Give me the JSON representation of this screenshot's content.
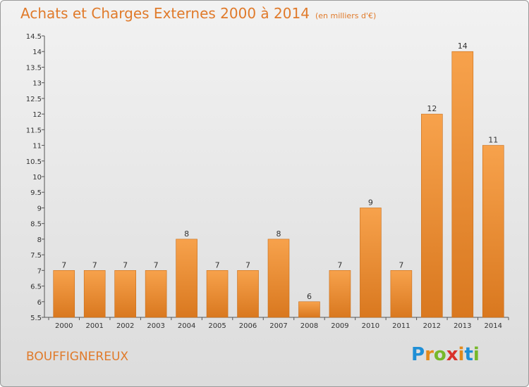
{
  "header": {
    "title": "Achats et Charges Externes 2000 à 2014",
    "unit": "(en milliers d'€)"
  },
  "footer": {
    "commune": "BOUFFIGNEREUX",
    "logo": [
      "P",
      "r",
      "o",
      "x",
      "i",
      "t",
      "i"
    ],
    "logo_colors": [
      "#1f8fd6",
      "#e38a1c",
      "#76b82a",
      "#d9322b",
      "#e38a1c",
      "#1f8fd6",
      "#76b82a"
    ]
  },
  "colors": {
    "bar_light": "#f7a24c",
    "bar_dark": "#d9781f",
    "text_accent": "#e07a2a"
  },
  "chart_data": {
    "type": "bar",
    "title": "Achats et Charges Externes 2000 à 2014",
    "subtitle": "(en milliers d'€)",
    "categories": [
      "2000",
      "2001",
      "2002",
      "2003",
      "2004",
      "2005",
      "2006",
      "2007",
      "2008",
      "2009",
      "2010",
      "2011",
      "2012",
      "2013",
      "2014"
    ],
    "values": [
      7,
      7,
      7,
      7,
      8,
      7,
      7,
      8,
      6,
      7,
      9,
      7,
      12,
      14,
      11
    ],
    "ylim": [
      5.5,
      14.5
    ],
    "yticks": [
      "5.5",
      "6",
      "6.5",
      "7",
      "7.5",
      "8",
      "8.5",
      "9",
      "9.5",
      "10",
      "10.5",
      "11",
      "11.5",
      "12",
      "12.5",
      "13",
      "13.5",
      "14",
      "14.5"
    ],
    "grid": false,
    "xlabel": "",
    "ylabel": ""
  }
}
